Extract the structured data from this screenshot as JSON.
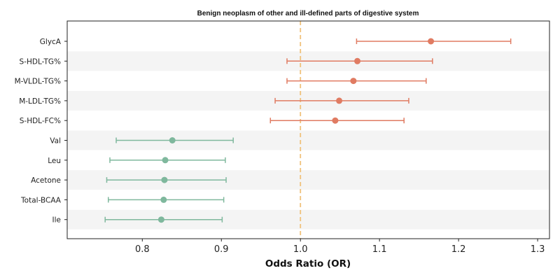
{
  "chart_data": {
    "type": "forest",
    "title": "Benign neoplasm of other and ill-defined parts of digestive system",
    "xlabel": "Odds Ratio (OR)",
    "xlim": [
      0.705,
      1.315
    ],
    "xticks": [
      "0.8",
      "0.9",
      "1.0",
      "1.1",
      "1.2",
      "1.3"
    ],
    "reference_line": 1.0,
    "categories": [
      "GlycA",
      "S-HDL-TG%",
      "M-VLDL-TG%",
      "M-LDL-TG%",
      "S-HDL-FC%",
      "Val",
      "Leu",
      "Acetone",
      "Total-BCAA",
      "Ile"
    ],
    "or": [
      1.165,
      1.072,
      1.067,
      1.049,
      1.044,
      0.838,
      0.829,
      0.828,
      0.827,
      0.824
    ],
    "ci_low": [
      1.071,
      0.983,
      0.983,
      0.968,
      0.962,
      0.767,
      0.759,
      0.755,
      0.757,
      0.753
    ],
    "ci_high": [
      1.266,
      1.167,
      1.159,
      1.137,
      1.131,
      0.915,
      0.905,
      0.906,
      0.903,
      0.901
    ],
    "colors": {
      "positive": "#e07b62",
      "negative": "#7fb89d",
      "reference": "#f0c27b",
      "band": "#f4f4f4"
    },
    "grid": false
  }
}
